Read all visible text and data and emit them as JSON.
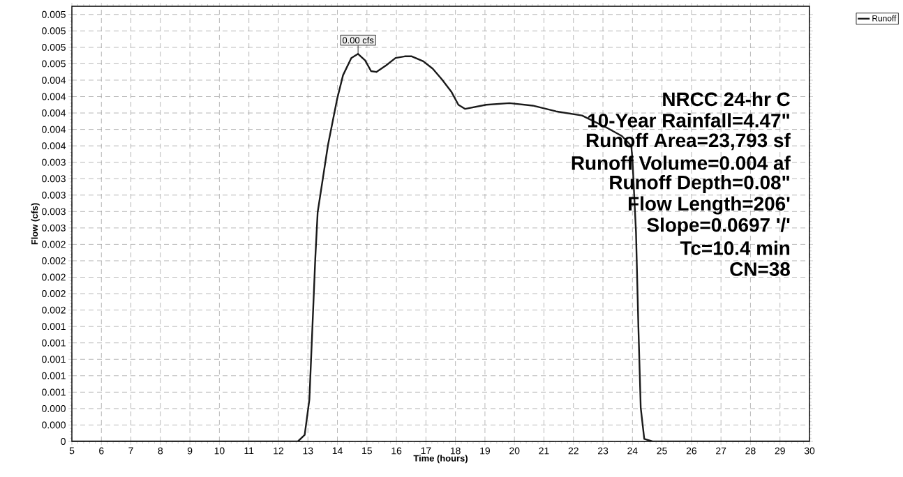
{
  "chart_data": {
    "type": "line",
    "xlabel": "Time  (hours)",
    "ylabel": "Flow  (cfs)",
    "xlim": [
      5,
      30
    ],
    "ylim": [
      0,
      0.0053
    ],
    "xticks": [
      5,
      6,
      7,
      8,
      9,
      10,
      11,
      12,
      13,
      14,
      15,
      16,
      17,
      18,
      19,
      20,
      21,
      22,
      23,
      24,
      25,
      26,
      27,
      28,
      29,
      30
    ],
    "yticks": [
      0,
      {
        "value": 0.0002,
        "label": "0.000"
      },
      {
        "value": 0.0004,
        "label": "0.000"
      },
      {
        "value": 0.0006,
        "label": "0.001"
      },
      {
        "value": 0.0008,
        "label": "0.001"
      },
      {
        "value": 0.001,
        "label": "0.001"
      },
      {
        "value": 0.0012,
        "label": "0.001"
      },
      {
        "value": 0.0014,
        "label": "0.001"
      },
      {
        "value": 0.0016,
        "label": "0.002"
      },
      {
        "value": 0.0018,
        "label": "0.002"
      },
      {
        "value": 0.002,
        "label": "0.002"
      },
      {
        "value": 0.0022,
        "label": "0.002"
      },
      {
        "value": 0.0024,
        "label": "0.002"
      },
      {
        "value": 0.0026,
        "label": "0.003"
      },
      {
        "value": 0.0028,
        "label": "0.003"
      },
      {
        "value": 0.003,
        "label": "0.003"
      },
      {
        "value": 0.0032,
        "label": "0.003"
      },
      {
        "value": 0.0034,
        "label": "0.003"
      },
      {
        "value": 0.0036,
        "label": "0.004"
      },
      {
        "value": 0.0038,
        "label": "0.004"
      },
      {
        "value": 0.004,
        "label": "0.004"
      },
      {
        "value": 0.0042,
        "label": "0.004"
      },
      {
        "value": 0.0044,
        "label": "0.004"
      },
      {
        "value": 0.0046,
        "label": "0.005"
      },
      {
        "value": 0.0048,
        "label": "0.005"
      },
      {
        "value": 0.005,
        "label": "0.005"
      },
      {
        "value": 0.0052,
        "label": "0.005"
      }
    ],
    "grid": true,
    "legend": "top right",
    "marker": "none",
    "line_style": "solid",
    "series": [
      {
        "name": "Runoff",
        "color": "#1a1a1a",
        "x": [
          5,
          12.66,
          12.89,
          13.05,
          13.25,
          13.33,
          13.68,
          13.99,
          14.19,
          14.47,
          14.7,
          14.94,
          15.14,
          15.32,
          15.65,
          15.97,
          16.28,
          16.52,
          16.91,
          17.23,
          17.54,
          17.86,
          18.1,
          18.33,
          19.04,
          19.83,
          20.62,
          21.41,
          22.29,
          23.08,
          23.64,
          23.96,
          24.0,
          24.12,
          24.2,
          24.28,
          24.4,
          24.68,
          30
        ],
        "values": [
          0,
          0,
          8e-05,
          0.00051,
          0.00223,
          0.00279,
          0.00361,
          0.00417,
          0.00446,
          0.00467,
          0.00472,
          0.00464,
          0.00451,
          0.0045,
          0.00458,
          0.00467,
          0.00469,
          0.00469,
          0.00463,
          0.00454,
          0.00441,
          0.00426,
          0.0041,
          0.00405,
          0.0041,
          0.00412,
          0.00409,
          0.00402,
          0.00397,
          0.00383,
          0.00372,
          0.0036,
          0.00343,
          0.00255,
          0.00141,
          0.00041,
          3e-05,
          0,
          0
        ]
      }
    ],
    "annotations": [
      {
        "text": "0.00 cfs",
        "x": 14.7,
        "y": 0.00472
      },
      "NRCC 24-hr C",
      "10-Year Rainfall=4.47\"",
      "Runoff Area=23,793 sf",
      "Runoff Volume=0.004 af",
      "Runoff Depth=0.08\"",
      "Flow Length=206'",
      "Slope=0.0697 '/'",
      "Tc=10.4 min",
      "CN=38"
    ]
  }
}
